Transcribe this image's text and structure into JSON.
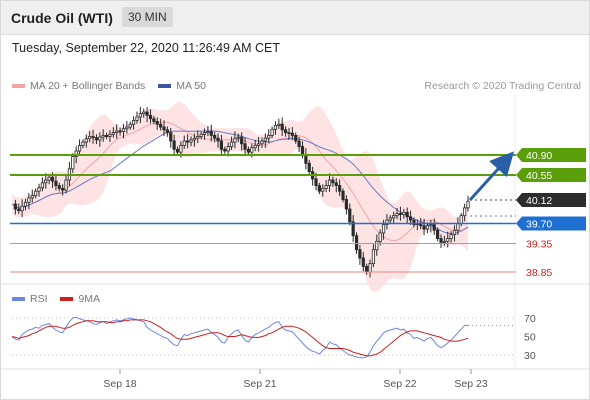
{
  "header": {
    "title": "Crude Oil (WTI)",
    "timeframe": "30 MIN"
  },
  "datetime": "Tuesday, September 22, 2020 11:26:49 AM CET",
  "legend": {
    "ma20": "MA 20 + Bollinger Bands",
    "ma50": "MA 50",
    "credit": "Research © 2020 Trading Central"
  },
  "rsi_legend": {
    "rsi": "RSI",
    "ma9": "9MA"
  },
  "colors": {
    "bollinger_fill": "#fddede",
    "ma20": "#f4a3a3",
    "ma50": "#6b78c9",
    "candle": "#2a2a2a",
    "resistance_green": "#5a9e0a",
    "pivot_blue": "#1f6fd1",
    "support_red": "#e8837f",
    "forecast_arrow": "#2a5fa8",
    "rsi_line": "#6d85e0",
    "rsi_ma": "#cc2020",
    "price_dark": "#2d2d2d"
  },
  "chart_data": [
    {
      "type": "candlestick",
      "title": "Crude Oil (WTI)",
      "timeframe": "30 MIN",
      "x_ticks": [
        "Sep 18",
        "Sep 21",
        "Sep 22",
        "Sep 23"
      ],
      "y_range": [
        38.6,
        41.1
      ],
      "current_price": 40.12,
      "levels": [
        {
          "value": 40.9,
          "label": "40.90",
          "kind": "resistance"
        },
        {
          "value": 40.55,
          "label": "40.55",
          "kind": "resistance"
        },
        {
          "value": 39.7,
          "label": "39.70",
          "kind": "pivot"
        },
        {
          "value": 39.35,
          "label": "39.35",
          "kind": "support"
        },
        {
          "value": 38.85,
          "label": "38.85",
          "kind": "support"
        }
      ],
      "current_price_label": "40.12",
      "forecast_target": 40.9,
      "series": [
        {
          "name": "MA 20 + Bollinger Bands"
        },
        {
          "name": "MA 50"
        }
      ],
      "closes": [
        40.07,
        39.98,
        39.95,
        40.03,
        40.1,
        40.18,
        40.22,
        40.3,
        40.36,
        40.45,
        40.5,
        40.55,
        40.48,
        40.4,
        40.35,
        40.32,
        40.5,
        40.7,
        40.92,
        41.02,
        41.12,
        41.18,
        41.24,
        41.28,
        41.26,
        41.22,
        41.27,
        41.3,
        41.28,
        41.32,
        41.35,
        41.38,
        41.37,
        41.42,
        41.45,
        41.5,
        41.57,
        41.63,
        41.69,
        41.72,
        41.66,
        41.6,
        41.55,
        41.5,
        41.45,
        41.4,
        41.35,
        41.2,
        41.05,
        41.0,
        41.12,
        41.2,
        41.18,
        41.22,
        41.25,
        41.28,
        41.32,
        41.35,
        41.37,
        41.3,
        41.25,
        41.2,
        41.05,
        41.02,
        41.1,
        41.18,
        41.25,
        41.27,
        41.15,
        41.05,
        41.0,
        41.08,
        41.12,
        41.15,
        41.2,
        41.25,
        41.3,
        41.41,
        41.48,
        41.5,
        41.4,
        41.35,
        41.34,
        41.3,
        41.2,
        41.1,
        40.95,
        40.8,
        40.65,
        40.52,
        40.4,
        40.3,
        40.35,
        40.4,
        40.5,
        40.45,
        40.4,
        40.3,
        40.15,
        39.98,
        39.75,
        39.5,
        39.25,
        39.1,
        38.95,
        38.85,
        39.0,
        39.25,
        39.4,
        39.55,
        39.7,
        39.78,
        39.82,
        39.86,
        39.9,
        39.88,
        39.92,
        39.84,
        39.78,
        39.7,
        39.72,
        39.68,
        39.62,
        39.68,
        39.7,
        39.6,
        39.45,
        39.38,
        39.4,
        39.45,
        39.52,
        39.6,
        39.72,
        39.86,
        40.0,
        40.12
      ]
    },
    {
      "type": "line",
      "title": "RSI",
      "y_ticks": [
        30,
        50,
        70
      ],
      "last_value": 62,
      "series": [
        {
          "name": "RSI",
          "values": [
            50,
            47,
            46,
            52,
            55,
            57,
            58,
            60,
            59,
            62,
            63,
            64,
            60,
            57,
            55,
            54,
            60,
            66,
            70,
            71,
            69,
            68,
            67,
            66,
            64,
            63,
            65,
            66,
            64,
            66,
            67,
            68,
            67,
            68,
            69,
            70,
            69,
            68,
            67,
            66,
            60,
            57,
            55,
            53,
            51,
            49,
            48,
            44,
            41,
            40,
            47,
            52,
            51,
            53,
            54,
            55,
            56,
            57,
            58,
            54,
            52,
            49,
            44,
            43,
            49,
            53,
            56,
            57,
            51,
            46,
            44,
            49,
            52,
            54,
            56,
            58,
            60,
            63,
            65,
            66,
            60,
            57,
            56,
            55,
            51,
            47,
            43,
            39,
            36,
            34,
            33,
            31,
            35,
            38,
            44,
            42,
            41,
            38,
            35,
            32,
            30,
            29,
            28,
            27,
            27,
            28,
            33,
            40,
            45,
            49,
            54,
            56,
            57,
            58,
            59,
            57,
            58,
            54,
            52,
            48,
            49,
            47,
            45,
            48,
            49,
            45,
            40,
            38,
            40,
            43,
            46,
            50,
            54,
            58,
            62,
            62
          ]
        },
        {
          "name": "9MA",
          "values": [
            50,
            49,
            48,
            49,
            50,
            51,
            53,
            54,
            56,
            58,
            60,
            61,
            61,
            61,
            60,
            59,
            59,
            60,
            62,
            64,
            65,
            66,
            67,
            67,
            67,
            66,
            66,
            66,
            66,
            65,
            65,
            66,
            66,
            67,
            67,
            68,
            68,
            68,
            68,
            68,
            67,
            66,
            64,
            62,
            60,
            57,
            55,
            53,
            50,
            48,
            47,
            47,
            47,
            48,
            49,
            50,
            51,
            52,
            53,
            54,
            54,
            54,
            53,
            51,
            50,
            50,
            50,
            51,
            52,
            51,
            50,
            49,
            49,
            49,
            50,
            51,
            53,
            54,
            56,
            58,
            60,
            61,
            61,
            61,
            60,
            59,
            57,
            55,
            52,
            49,
            46,
            43,
            40,
            38,
            37,
            37,
            37,
            37,
            37,
            36,
            35,
            33,
            32,
            31,
            30,
            29,
            29,
            30,
            31,
            33,
            36,
            39,
            42,
            45,
            48,
            51,
            53,
            55,
            56,
            56,
            56,
            55,
            54,
            53,
            52,
            51,
            50,
            49,
            47,
            46,
            45,
            45,
            45,
            46,
            47,
            48
          ]
        }
      ]
    }
  ]
}
